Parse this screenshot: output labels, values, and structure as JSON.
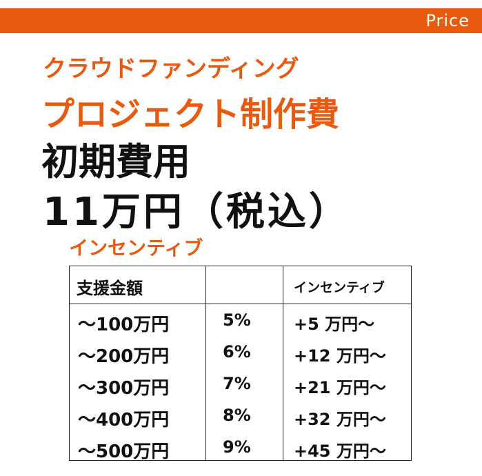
{
  "header": {
    "label": "Price"
  },
  "titles": {
    "line1": "クラウドファンディング",
    "line2": "プロジェクト制作費",
    "line3": "初期費用",
    "line4": "11万円（税込）"
  },
  "section_label": "インセンティブ",
  "table": {
    "header": {
      "amount": "支援金額",
      "incentive": "インセンティブ"
    },
    "rows": [
      [
        "～100万円",
        "5%",
        "+5 万円～"
      ],
      [
        "～200万円",
        "6%",
        "+12 万円～"
      ],
      [
        "～300万円",
        "7%",
        "+21 万円～"
      ],
      [
        "～400万円",
        "8%",
        "+32 万円～"
      ],
      [
        "～500万円",
        "9%",
        "+45 万円～"
      ]
    ]
  }
}
